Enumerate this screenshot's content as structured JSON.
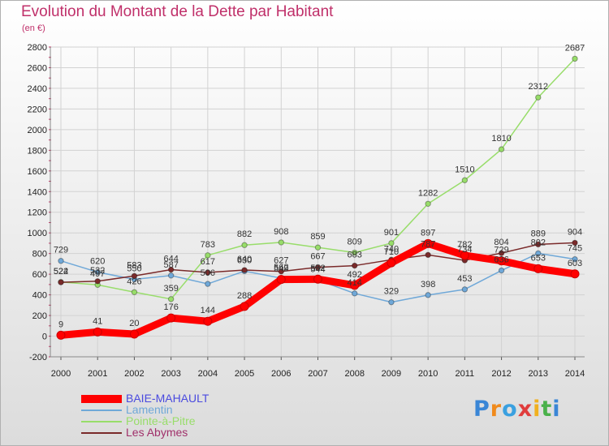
{
  "title": "Evolution du Montant de la Dette par Habitant",
  "unit_label": "(en €)",
  "logo": {
    "text": "Proxiti",
    "letters": [
      {
        "ch": "P",
        "color": "#3a86d6"
      },
      {
        "ch": "r",
        "color": "#f08a1c"
      },
      {
        "ch": "o",
        "color": "#3aa0e0"
      },
      {
        "ch": "x",
        "color": "#e03c3c"
      },
      {
        "ch": "i",
        "color": "#f0b020"
      },
      {
        "ch": "t",
        "color": "#49b14a"
      },
      {
        "ch": "i",
        "color": "#3a86d6"
      }
    ]
  },
  "chart_data": {
    "type": "line",
    "title": "Evolution du Montant de la Dette par Habitant",
    "ylabel": "(en €)",
    "xlabel": "",
    "x": [
      "2000",
      "2001",
      "2002",
      "2003",
      "2004",
      "2005",
      "2006",
      "2007",
      "2008",
      "2009",
      "2010",
      "2011",
      "2012",
      "2013",
      "2014"
    ],
    "ylim": [
      -200,
      2800
    ],
    "yticks": [
      -200,
      0,
      200,
      400,
      600,
      800,
      1000,
      1200,
      1400,
      1600,
      1800,
      2000,
      2200,
      2400,
      2600,
      2800
    ],
    "grid": true,
    "legend_position": "bottom-left",
    "series": [
      {
        "name": "BAIE-MAHAULT",
        "color": "#ff0000",
        "values": [
          9,
          41,
          20,
          176,
          144,
          288,
          549,
          552,
          492,
          710,
          897,
          782,
          729,
          653,
          603
        ]
      },
      {
        "name": "Lamentin",
        "color": "#6fa8d8",
        "values": [
          729,
          620,
          550,
          587,
          506,
          630,
          562,
          544,
          414,
          329,
          398,
          453,
          636,
          802,
          745
        ]
      },
      {
        "name": "Pointe-à-Pitre",
        "color": "#98dd6a",
        "values": [
          524,
          497,
          426,
          359,
          783,
          882,
          908,
          859,
          809,
          901,
          1282,
          1510,
          1810,
          2312,
          2687
        ]
      },
      {
        "name": "Les Abymes",
        "color": "#7a2a2a",
        "values": [
          522,
          532,
          583,
          644,
          617,
          640,
          627,
          667,
          683,
          740,
          787,
          734,
          804,
          889,
          904
        ]
      }
    ]
  }
}
